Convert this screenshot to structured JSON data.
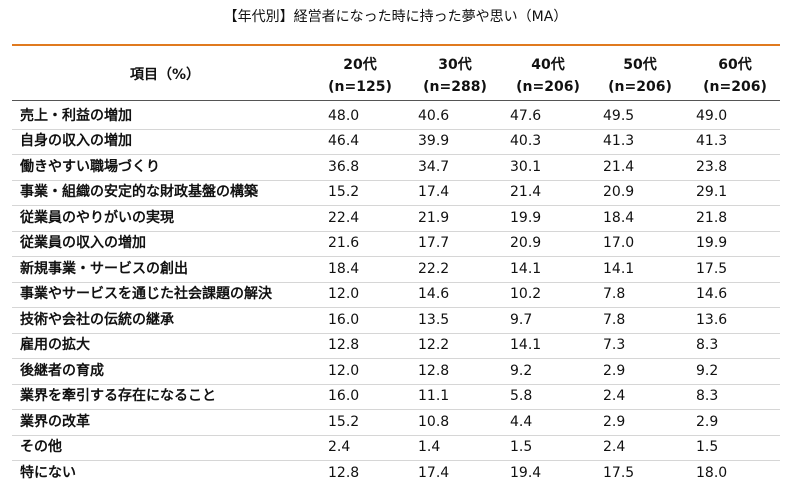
{
  "title": "【年代別】経営者になった時に持った夢や思い（MA）",
  "table": {
    "item_header": "項目（%）",
    "columns": [
      {
        "age": "20代",
        "n": "(n=125)"
      },
      {
        "age": "30代",
        "n": "(n=288)"
      },
      {
        "age": "40代",
        "n": "(n=206)"
      },
      {
        "age": "50代",
        "n": "(n=206)"
      },
      {
        "age": "60代",
        "n": "(n=206)"
      }
    ],
    "rows": [
      [
        "売上・利益の増加",
        "48.0",
        "40.6",
        "47.6",
        "49.5",
        "49.0"
      ],
      [
        "自身の収入の増加",
        "46.4",
        "39.9",
        "40.3",
        "41.3",
        "41.3"
      ],
      [
        "働きやすい職場づくり",
        "36.8",
        "34.7",
        "30.1",
        "21.4",
        "23.8"
      ],
      [
        "事業・組織の安定的な財政基盤の構築",
        "15.2",
        "17.4",
        "21.4",
        "20.9",
        "29.1"
      ],
      [
        "従業員のやりがいの実現",
        "22.4",
        "21.9",
        "19.9",
        "18.4",
        "21.8"
      ],
      [
        "従業員の収入の増加",
        "21.6",
        "17.7",
        "20.9",
        "17.0",
        "19.9"
      ],
      [
        "新規事業・サービスの創出",
        "18.4",
        "22.2",
        "14.1",
        "14.1",
        "17.5"
      ],
      [
        "事業やサービスを通じた社会課題の解決",
        "12.0",
        "14.6",
        "10.2",
        "7.8",
        "14.6"
      ],
      [
        "技術や会社の伝統の継承",
        "16.0",
        "13.5",
        "9.7",
        "7.8",
        "13.6"
      ],
      [
        "雇用の拡大",
        "12.8",
        "12.2",
        "14.1",
        "7.3",
        "8.3"
      ],
      [
        "後継者の育成",
        "12.0",
        "12.8",
        "9.2",
        "2.9",
        "9.2"
      ],
      [
        "業界を牽引する存在になること",
        "16.0",
        "11.1",
        "5.8",
        "2.4",
        "8.3"
      ],
      [
        "業界の改革",
        "15.2",
        "10.8",
        "4.4",
        "2.9",
        "2.9"
      ],
      [
        "その他",
        "2.4",
        "1.4",
        "1.5",
        "2.4",
        "1.5"
      ],
      [
        "特にない",
        "12.8",
        "17.4",
        "19.4",
        "17.5",
        "18.0"
      ]
    ]
  }
}
